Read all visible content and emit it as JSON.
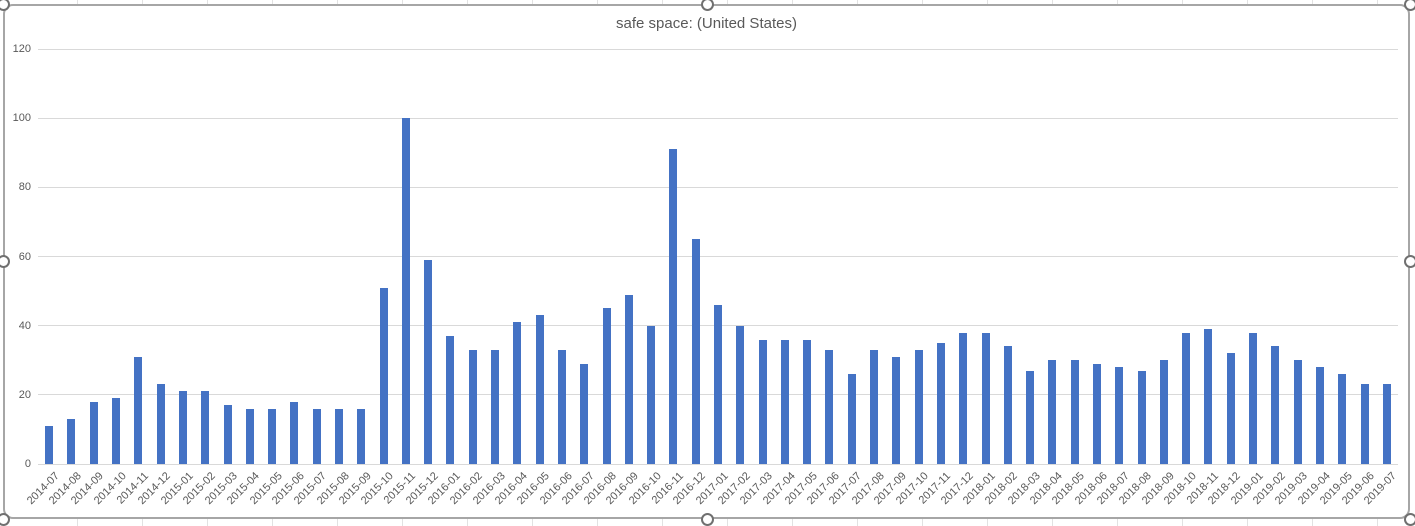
{
  "chart": {
    "title": "safe space: (United States)"
  },
  "chart_data": {
    "type": "bar",
    "title": "safe space: (United States)",
    "categories": [
      "2014-07",
      "2014-08",
      "2014-09",
      "2014-10",
      "2014-11",
      "2014-12",
      "2015-01",
      "2015-02",
      "2015-03",
      "2015-04",
      "2015-05",
      "2015-06",
      "2015-07",
      "2015-08",
      "2015-09",
      "2015-10",
      "2015-11",
      "2015-12",
      "2016-01",
      "2016-02",
      "2016-03",
      "2016-04",
      "2016-05",
      "2016-06",
      "2016-07",
      "2016-08",
      "2016-09",
      "2016-10",
      "2016-11",
      "2016-12",
      "2017-01",
      "2017-02",
      "2017-03",
      "2017-04",
      "2017-05",
      "2017-06",
      "2017-07",
      "2017-08",
      "2017-09",
      "2017-10",
      "2017-11",
      "2017-12",
      "2018-01",
      "2018-02",
      "2018-03",
      "2018-04",
      "2018-05",
      "2018-06",
      "2018-07",
      "2018-08",
      "2018-09",
      "2018-10",
      "2018-11",
      "2018-12",
      "2019-01",
      "2019-02",
      "2019-03",
      "2019-04",
      "2019-05",
      "2019-06",
      "2019-07"
    ],
    "values": [
      11,
      13,
      18,
      19,
      31,
      23,
      21,
      21,
      17,
      16,
      16,
      18,
      16,
      16,
      16,
      51,
      100,
      59,
      37,
      33,
      33,
      41,
      43,
      33,
      29,
      45,
      49,
      40,
      91,
      65,
      46,
      40,
      36,
      36,
      36,
      33,
      26,
      33,
      31,
      33,
      35,
      38,
      38,
      34,
      27,
      30,
      30,
      29,
      28,
      27,
      30,
      38,
      39,
      32,
      38,
      34,
      30,
      28,
      26,
      23,
      23
    ],
    "xlabel": "",
    "ylabel": "",
    "ylim": [
      0,
      120
    ],
    "yticks": [
      0,
      20,
      40,
      60,
      80,
      100,
      120
    ],
    "grid": true,
    "legend": false
  },
  "colors": {
    "bar": "#4472C4",
    "gridline": "#d9d9d9",
    "axis_text": "#595959",
    "title_text": "#595959",
    "chart_border": "#a6a6a6",
    "selection_handle_border": "#707070",
    "background": "#ffffff"
  }
}
